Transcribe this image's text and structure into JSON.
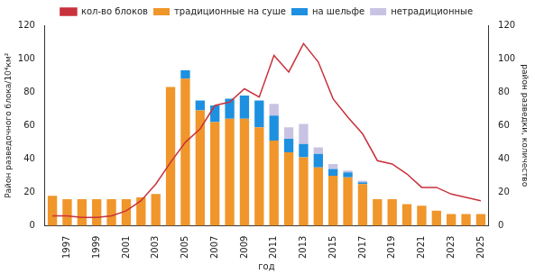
{
  "chart_data": {
    "type": "bar",
    "x_label": "год",
    "y_label": "Район разведочного блока/10⁴км²",
    "y2_label": "район разведки, количество",
    "categories": [
      null,
      "1997",
      null,
      "1999",
      null,
      "2001",
      null,
      "2003",
      null,
      "2005",
      null,
      "2007",
      null,
      "2009",
      null,
      "2011",
      null,
      "2013",
      null,
      "2015",
      null,
      "2017",
      null,
      "2019",
      null,
      "2021",
      null,
      "2023",
      null,
      "2025"
    ],
    "series": [
      {
        "name": "традиционные на суше",
        "color": "#f0962a",
        "values": [
          18,
          16,
          16,
          16,
          16,
          16,
          17,
          19,
          83,
          88,
          69,
          62,
          64,
          64,
          59,
          51,
          44,
          41,
          35,
          30,
          29,
          25,
          16,
          16,
          13,
          12,
          9,
          7,
          7,
          7
        ]
      },
      {
        "name": "на шельфе",
        "color": "#1e90e0",
        "values": [
          0,
          0,
          0,
          0,
          0,
          0,
          0,
          0,
          0,
          5,
          6,
          10,
          12,
          14,
          16,
          15,
          8,
          8,
          8,
          4,
          3,
          1,
          0,
          0,
          0,
          0,
          0,
          0,
          0,
          0
        ]
      },
      {
        "name": "нетрадиционные",
        "color": "#c9c3e3",
        "values": [
          0,
          0,
          0,
          0,
          0,
          0,
          0,
          0,
          0,
          0,
          0,
          0,
          0,
          0,
          0,
          7,
          7,
          12,
          4,
          3,
          1,
          1,
          0,
          0,
          0,
          0,
          0,
          0,
          0,
          0
        ]
      },
      {
        "name": "кол-во блоков",
        "color": "#c8323c",
        "type": "line",
        "axis": "y2",
        "values": [
          6,
          6,
          5,
          5,
          6,
          9,
          15,
          25,
          38,
          50,
          58,
          72,
          74,
          82,
          77,
          102,
          92,
          109,
          98,
          76,
          65,
          55,
          39,
          37,
          31,
          23,
          23,
          19,
          17,
          15
        ]
      }
    ],
    "ylim": [
      0,
      120
    ],
    "yticks": [
      0,
      20,
      40,
      60,
      80,
      100,
      120
    ],
    "y2lim": [
      0,
      120
    ],
    "y2ticks": [
      0,
      20,
      40,
      60,
      80,
      100,
      120
    ],
    "stacked": true,
    "grid": false,
    "legend": "top"
  }
}
